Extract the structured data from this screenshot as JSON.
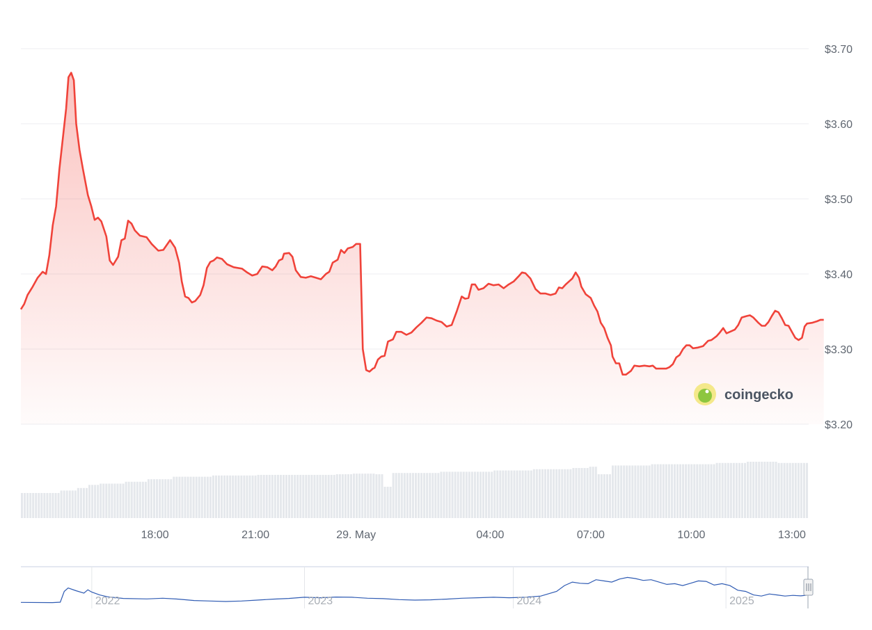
{
  "chart_data": {
    "type": "area",
    "currency_prefix": "$",
    "y_ticks": [
      "$3.70",
      "$3.60",
      "$3.50",
      "$3.40",
      "$3.30",
      "$3.20"
    ],
    "y_tick_values": [
      3.7,
      3.6,
      3.5,
      3.4,
      3.3,
      3.2
    ],
    "ylim": [
      3.2,
      3.7
    ],
    "x_ticks": [
      "18:00",
      "21:00",
      "29. May",
      "04:00",
      "07:00",
      "10:00",
      "13:00"
    ],
    "x_tick_hours": [
      18,
      21,
      24,
      28,
      31,
      34,
      37
    ],
    "xlim_hours": [
      14,
      37.5
    ],
    "grid": true,
    "line_color": "#f0433a",
    "fill_color": "#f0433a",
    "volume_color": "#e5e8ec",
    "price_series": [
      [
        14.0,
        3.353
      ],
      [
        14.1,
        3.36
      ],
      [
        14.2,
        3.372
      ],
      [
        14.35,
        3.383
      ],
      [
        14.5,
        3.395
      ],
      [
        14.65,
        3.403
      ],
      [
        14.75,
        3.4
      ],
      [
        14.85,
        3.425
      ],
      [
        14.95,
        3.465
      ],
      [
        15.05,
        3.49
      ],
      [
        15.15,
        3.54
      ],
      [
        15.25,
        3.58
      ],
      [
        15.35,
        3.62
      ],
      [
        15.42,
        3.662
      ],
      [
        15.5,
        3.668
      ],
      [
        15.58,
        3.658
      ],
      [
        15.65,
        3.6
      ],
      [
        15.75,
        3.565
      ],
      [
        15.85,
        3.54
      ],
      [
        16.0,
        3.505
      ],
      [
        16.1,
        3.49
      ],
      [
        16.2,
        3.472
      ],
      [
        16.3,
        3.475
      ],
      [
        16.4,
        3.47
      ],
      [
        16.55,
        3.45
      ],
      [
        16.65,
        3.418
      ],
      [
        16.75,
        3.412
      ],
      [
        16.9,
        3.423
      ],
      [
        17.0,
        3.445
      ],
      [
        17.1,
        3.447
      ],
      [
        17.2,
        3.471
      ],
      [
        17.3,
        3.467
      ],
      [
        17.4,
        3.458
      ],
      [
        17.55,
        3.451
      ],
      [
        17.75,
        3.449
      ],
      [
        17.9,
        3.44
      ],
      [
        18.1,
        3.431
      ],
      [
        18.25,
        3.432
      ],
      [
        18.45,
        3.445
      ],
      [
        18.6,
        3.435
      ],
      [
        18.72,
        3.415
      ],
      [
        18.8,
        3.39
      ],
      [
        18.9,
        3.37
      ],
      [
        19.0,
        3.368
      ],
      [
        19.1,
        3.362
      ],
      [
        19.2,
        3.364
      ],
      [
        19.35,
        3.372
      ],
      [
        19.45,
        3.385
      ],
      [
        19.55,
        3.408
      ],
      [
        19.65,
        3.416
      ],
      [
        19.75,
        3.418
      ],
      [
        19.85,
        3.422
      ],
      [
        20.0,
        3.42
      ],
      [
        20.15,
        3.413
      ],
      [
        20.35,
        3.409
      ],
      [
        20.6,
        3.407
      ],
      [
        20.75,
        3.402
      ],
      [
        20.9,
        3.398
      ],
      [
        21.05,
        3.4
      ],
      [
        21.2,
        3.41
      ],
      [
        21.35,
        3.409
      ],
      [
        21.5,
        3.405
      ],
      [
        21.6,
        3.41
      ],
      [
        21.7,
        3.418
      ],
      [
        21.8,
        3.42
      ],
      [
        21.85,
        3.427
      ],
      [
        22.0,
        3.428
      ],
      [
        22.1,
        3.423
      ],
      [
        22.2,
        3.405
      ],
      [
        22.35,
        3.396
      ],
      [
        22.5,
        3.395
      ],
      [
        22.65,
        3.397
      ],
      [
        22.8,
        3.395
      ],
      [
        22.95,
        3.393
      ],
      [
        23.1,
        3.4
      ],
      [
        23.2,
        3.403
      ],
      [
        23.3,
        3.415
      ],
      [
        23.45,
        3.419
      ],
      [
        23.55,
        3.432
      ],
      [
        23.65,
        3.428
      ],
      [
        23.75,
        3.434
      ],
      [
        23.9,
        3.436
      ],
      [
        24.0,
        3.44
      ],
      [
        24.12,
        3.44
      ],
      [
        24.2,
        3.3
      ],
      [
        24.3,
        3.272
      ],
      [
        24.4,
        3.27
      ],
      [
        24.5,
        3.274
      ],
      [
        24.55,
        3.275
      ],
      [
        24.65,
        3.286
      ],
      [
        24.75,
        3.29
      ],
      [
        24.85,
        3.291
      ],
      [
        24.95,
        3.31
      ],
      [
        25.1,
        3.313
      ],
      [
        25.2,
        3.323
      ],
      [
        25.35,
        3.323
      ],
      [
        25.5,
        3.319
      ],
      [
        25.65,
        3.322
      ],
      [
        25.8,
        3.329
      ],
      [
        25.95,
        3.335
      ],
      [
        26.1,
        3.342
      ],
      [
        26.25,
        3.341
      ],
      [
        26.4,
        3.338
      ],
      [
        26.55,
        3.336
      ],
      [
        26.7,
        3.33
      ],
      [
        26.85,
        3.332
      ],
      [
        27.0,
        3.35
      ],
      [
        27.15,
        3.37
      ],
      [
        27.25,
        3.367
      ],
      [
        27.35,
        3.368
      ],
      [
        27.45,
        3.386
      ],
      [
        27.55,
        3.386
      ],
      [
        27.65,
        3.379
      ],
      [
        27.8,
        3.381
      ],
      [
        27.95,
        3.387
      ],
      [
        28.1,
        3.385
      ],
      [
        28.25,
        3.386
      ],
      [
        28.4,
        3.381
      ],
      [
        28.55,
        3.386
      ],
      [
        28.7,
        3.39
      ],
      [
        28.85,
        3.397
      ],
      [
        28.95,
        3.402
      ],
      [
        29.05,
        3.401
      ],
      [
        29.2,
        3.394
      ],
      [
        29.35,
        3.38
      ],
      [
        29.5,
        3.374
      ],
      [
        29.65,
        3.374
      ],
      [
        29.8,
        3.372
      ],
      [
        29.95,
        3.374
      ],
      [
        30.05,
        3.382
      ],
      [
        30.15,
        3.381
      ],
      [
        30.25,
        3.386
      ],
      [
        30.35,
        3.39
      ],
      [
        30.45,
        3.394
      ],
      [
        30.55,
        3.402
      ],
      [
        30.65,
        3.395
      ],
      [
        30.72,
        3.383
      ],
      [
        30.85,
        3.373
      ],
      [
        31.0,
        3.368
      ],
      [
        31.1,
        3.358
      ],
      [
        31.2,
        3.35
      ],
      [
        31.3,
        3.335
      ],
      [
        31.4,
        3.328
      ],
      [
        31.5,
        3.315
      ],
      [
        31.6,
        3.305
      ],
      [
        31.65,
        3.29
      ],
      [
        31.75,
        3.281
      ],
      [
        31.85,
        3.281
      ],
      [
        31.95,
        3.266
      ],
      [
        32.05,
        3.266
      ],
      [
        32.2,
        3.271
      ],
      [
        32.3,
        3.278
      ],
      [
        32.45,
        3.277
      ],
      [
        32.6,
        3.278
      ],
      [
        32.75,
        3.277
      ],
      [
        32.85,
        3.278
      ],
      [
        32.95,
        3.274
      ],
      [
        33.1,
        3.274
      ],
      [
        33.25,
        3.274
      ],
      [
        33.35,
        3.276
      ],
      [
        33.45,
        3.28
      ],
      [
        33.55,
        3.289
      ],
      [
        33.65,
        3.292
      ],
      [
        33.75,
        3.3
      ],
      [
        33.85,
        3.305
      ],
      [
        33.95,
        3.305
      ],
      [
        34.05,
        3.301
      ],
      [
        34.2,
        3.302
      ],
      [
        34.35,
        3.304
      ],
      [
        34.5,
        3.311
      ],
      [
        34.6,
        3.312
      ],
      [
        34.75,
        3.317
      ],
      [
        34.85,
        3.322
      ],
      [
        34.95,
        3.328
      ],
      [
        35.05,
        3.321
      ],
      [
        35.15,
        3.323
      ],
      [
        35.3,
        3.326
      ],
      [
        35.4,
        3.332
      ],
      [
        35.5,
        3.342
      ],
      [
        35.65,
        3.344
      ],
      [
        35.75,
        3.345
      ],
      [
        35.85,
        3.342
      ],
      [
        36.0,
        3.335
      ],
      [
        36.1,
        3.331
      ],
      [
        36.2,
        3.331
      ],
      [
        36.3,
        3.336
      ],
      [
        36.4,
        3.344
      ],
      [
        36.5,
        3.351
      ],
      [
        36.6,
        3.349
      ],
      [
        36.7,
        3.341
      ],
      [
        36.8,
        3.332
      ],
      [
        36.9,
        3.331
      ],
      [
        37.0,
        3.323
      ],
      [
        37.1,
        3.315
      ],
      [
        37.2,
        3.312
      ],
      [
        37.3,
        3.315
      ],
      [
        37.38,
        3.33
      ],
      [
        37.45,
        3.334
      ],
      [
        37.6,
        3.335
      ],
      [
        37.75,
        3.337
      ],
      [
        37.85,
        3.339
      ],
      [
        37.95,
        3.339
      ]
    ],
    "volume_levels": [
      [
        0.0,
        0.4
      ],
      [
        0.05,
        0.44
      ],
      [
        0.07,
        0.48
      ],
      [
        0.085,
        0.53
      ],
      [
        0.1,
        0.55
      ],
      [
        0.13,
        0.58
      ],
      [
        0.16,
        0.62
      ],
      [
        0.19,
        0.66
      ],
      [
        0.24,
        0.68
      ],
      [
        0.3,
        0.69
      ],
      [
        0.4,
        0.7
      ],
      [
        0.42,
        0.71
      ],
      [
        0.45,
        0.7
      ],
      [
        0.46,
        0.5
      ],
      [
        0.47,
        0.72
      ],
      [
        0.53,
        0.74
      ],
      [
        0.6,
        0.76
      ],
      [
        0.65,
        0.78
      ],
      [
        0.7,
        0.8
      ],
      [
        0.72,
        0.82
      ],
      [
        0.73,
        0.7
      ],
      [
        0.75,
        0.84
      ],
      [
        0.8,
        0.86
      ],
      [
        0.88,
        0.88
      ],
      [
        0.92,
        0.9
      ],
      [
        0.96,
        0.88
      ],
      [
        1.0,
        0.86
      ]
    ],
    "navigator": {
      "x_ticks": [
        "2022",
        "2023",
        "2024",
        "2025"
      ],
      "x_tick_positions": [
        0.09,
        0.36,
        0.625,
        0.895
      ],
      "line_color": "#2f5bb3",
      "series": [
        [
          0.0,
          0.08
        ],
        [
          0.04,
          0.07
        ],
        [
          0.05,
          0.09
        ],
        [
          0.055,
          0.55
        ],
        [
          0.06,
          0.7
        ],
        [
          0.07,
          0.58
        ],
        [
          0.08,
          0.48
        ],
        [
          0.085,
          0.62
        ],
        [
          0.09,
          0.52
        ],
        [
          0.1,
          0.4
        ],
        [
          0.11,
          0.32
        ],
        [
          0.13,
          0.25
        ],
        [
          0.16,
          0.23
        ],
        [
          0.18,
          0.26
        ],
        [
          0.2,
          0.22
        ],
        [
          0.22,
          0.16
        ],
        [
          0.24,
          0.14
        ],
        [
          0.26,
          0.12
        ],
        [
          0.28,
          0.14
        ],
        [
          0.3,
          0.18
        ],
        [
          0.32,
          0.22
        ],
        [
          0.34,
          0.25
        ],
        [
          0.36,
          0.3
        ],
        [
          0.38,
          0.28
        ],
        [
          0.4,
          0.31
        ],
        [
          0.42,
          0.3
        ],
        [
          0.44,
          0.26
        ],
        [
          0.46,
          0.24
        ],
        [
          0.48,
          0.2
        ],
        [
          0.5,
          0.18
        ],
        [
          0.52,
          0.19
        ],
        [
          0.54,
          0.22
        ],
        [
          0.56,
          0.26
        ],
        [
          0.58,
          0.28
        ],
        [
          0.6,
          0.3
        ],
        [
          0.62,
          0.28
        ],
        [
          0.64,
          0.3
        ],
        [
          0.66,
          0.35
        ],
        [
          0.68,
          0.55
        ],
        [
          0.69,
          0.8
        ],
        [
          0.7,
          0.95
        ],
        [
          0.71,
          0.9
        ],
        [
          0.72,
          0.88
        ],
        [
          0.73,
          1.05
        ],
        [
          0.74,
          1.0
        ],
        [
          0.75,
          0.95
        ],
        [
          0.76,
          1.08
        ],
        [
          0.77,
          1.15
        ],
        [
          0.78,
          1.1
        ],
        [
          0.79,
          1.02
        ],
        [
          0.8,
          1.05
        ],
        [
          0.81,
          0.95
        ],
        [
          0.82,
          0.85
        ],
        [
          0.83,
          0.88
        ],
        [
          0.84,
          0.8
        ],
        [
          0.85,
          0.9
        ],
        [
          0.86,
          1.0
        ],
        [
          0.87,
          0.98
        ],
        [
          0.88,
          0.82
        ],
        [
          0.89,
          0.88
        ],
        [
          0.9,
          0.8
        ],
        [
          0.91,
          0.6
        ],
        [
          0.92,
          0.55
        ],
        [
          0.93,
          0.4
        ],
        [
          0.94,
          0.35
        ],
        [
          0.95,
          0.44
        ],
        [
          0.96,
          0.4
        ],
        [
          0.97,
          0.35
        ],
        [
          0.98,
          0.38
        ],
        [
          0.99,
          0.36
        ],
        [
          1.0,
          0.4
        ]
      ]
    },
    "logo_text": "coingecko"
  }
}
